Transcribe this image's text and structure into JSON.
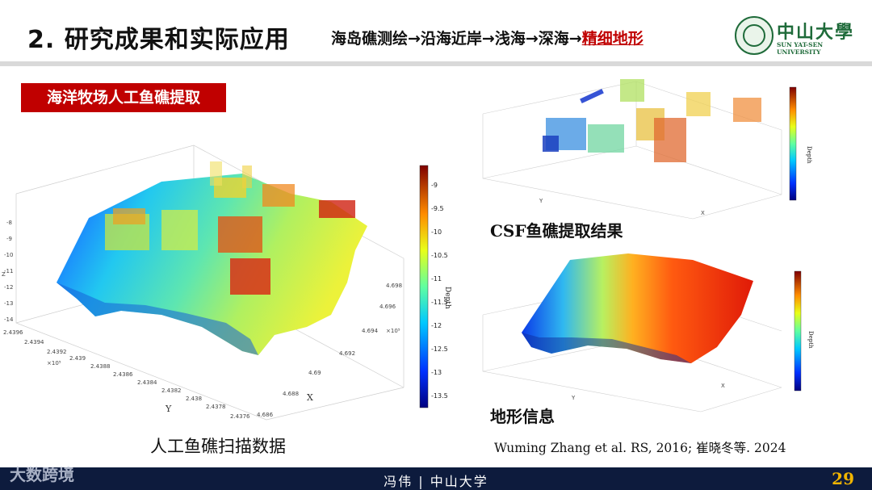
{
  "header": {
    "title": "2. 研究成果和实际应用",
    "subtitle_prefix": "海岛礁测绘→沿海近岸→浅海→深海→",
    "subtitle_highlight": "精细地形"
  },
  "logo": {
    "cn": "中山大學",
    "en": "SUN YAT-SEN UNIVERSITY"
  },
  "section_tag": "海洋牧场人工鱼礁提取",
  "figures": {
    "main": {
      "caption": "人工鱼礁扫描数据",
      "colorbar_label": "Depth",
      "colorbar_ticks": [
        "-9",
        "-9.5",
        "-10",
        "-10.5",
        "-11",
        "-11.5",
        "-12",
        "-12.5",
        "-13",
        "-13.5"
      ],
      "z_ticks": [
        "-8",
        "-9",
        "-10",
        "-11",
        "-12",
        "-13",
        "-14"
      ],
      "z_label": "Z",
      "y_ticks": [
        "2.4396",
        "2.4394",
        "2.4392",
        "2.439",
        "2.4388",
        "2.4386",
        "2.4384",
        "2.4382",
        "2.438",
        "2.4378",
        "2.4376"
      ],
      "y_label": "Y",
      "y_exp": "×10⁵",
      "x_ticks": [
        "4.698",
        "4.696",
        "4.694",
        "4.692",
        "4.69",
        "4.688",
        "4.686"
      ],
      "x_label": "X",
      "x_exp": "×10⁵"
    },
    "csf": {
      "caption": "CSF鱼礁提取结果",
      "colorbar_label": "Depth",
      "x_label": "X",
      "y_label": "Y"
    },
    "terrain": {
      "caption": "地形信息",
      "colorbar_label": "Depth",
      "x_label": "X",
      "y_label": "Y"
    }
  },
  "reference": "Wuming Zhang et al. RS, 2016; 崔晓冬等. 2024",
  "footer": {
    "text": "冯伟  |  中山大学",
    "page_number": "29"
  },
  "watermark": "大数跨境",
  "colors": {
    "accent": "#c00000",
    "footer_bg": "#0d1b3d",
    "page_number": "#f0b400",
    "logo_green": "#1f6b3a"
  }
}
